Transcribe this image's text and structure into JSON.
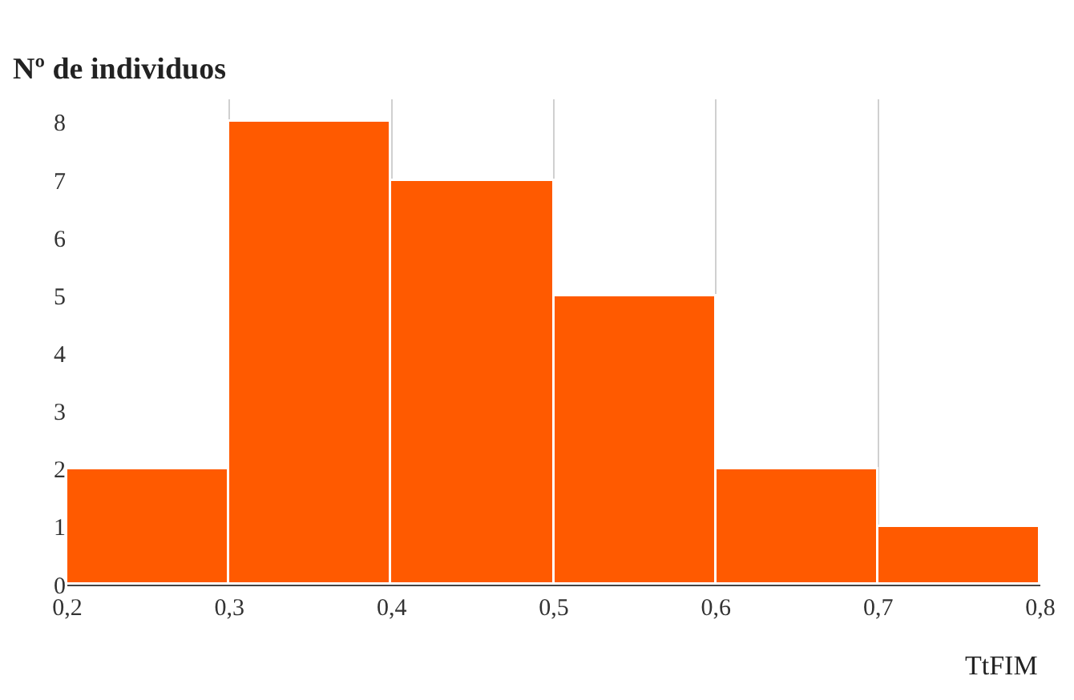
{
  "chart_data": {
    "type": "histogram",
    "ylabel": "Nº de individuos",
    "xlabel": "TtFIM",
    "bins": [
      0.2,
      0.3,
      0.4,
      0.5,
      0.6,
      0.7,
      0.8
    ],
    "values": [
      2,
      8,
      7,
      5,
      2,
      1
    ],
    "color": "#ff5a00",
    "xlim": [
      0.2,
      0.8
    ],
    "xticks": [
      {
        "value": 0.2,
        "label": "0,2"
      },
      {
        "value": 0.3,
        "label": "0,3"
      },
      {
        "value": 0.4,
        "label": "0,4"
      },
      {
        "value": 0.5,
        "label": "0,5"
      },
      {
        "value": 0.6,
        "label": "0,6"
      },
      {
        "value": 0.7,
        "label": "0,7"
      },
      {
        "value": 0.8,
        "label": "0,8"
      }
    ],
    "ylim": [
      0,
      8.4
    ],
    "yticks": [
      0,
      1,
      2,
      3,
      4,
      5,
      6,
      7,
      8
    ],
    "grid": "x"
  }
}
